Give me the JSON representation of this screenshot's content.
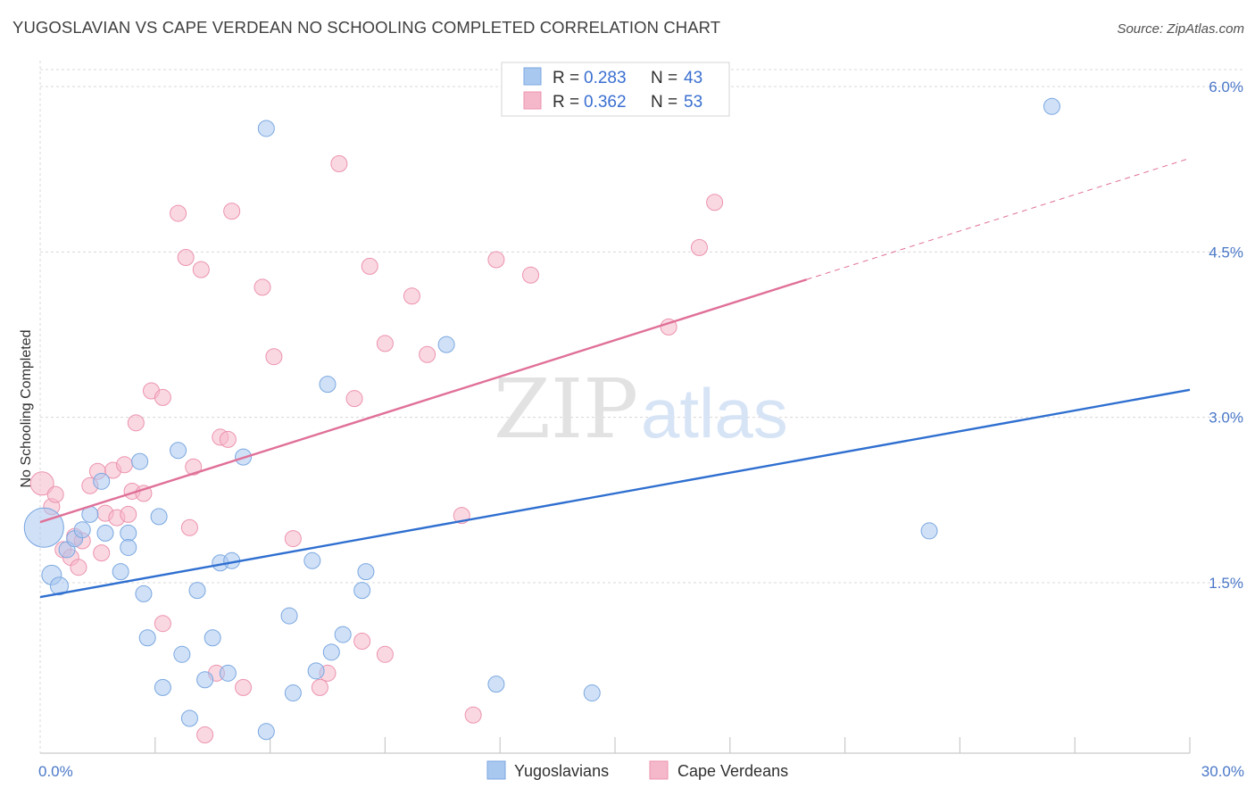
{
  "title": "YUGOSLAVIAN VS CAPE VERDEAN NO SCHOOLING COMPLETED CORRELATION CHART",
  "source": "Source: ZipAtlas.com",
  "watermark": {
    "zip": "ZIP",
    "atlas": "atlas"
  },
  "colors": {
    "blue_fill": "#a9c8f0",
    "blue_stroke": "#7aa7e0",
    "blue_line": "#2f6fd0",
    "pink_fill": "#f5b8ca",
    "pink_stroke": "#ec93ae",
    "pink_line": "#e07098",
    "tick_label": "#4a78c8",
    "grid": "#d8d8d8"
  },
  "legend": {
    "rows": [
      {
        "r_label": "R = ",
        "r_value": "0.283",
        "n_label": "N = ",
        "n_value": "43",
        "series": "blue"
      },
      {
        "r_label": "R = ",
        "r_value": "0.362",
        "n_label": "N = ",
        "n_value": "53",
        "series": "pink"
      }
    ]
  },
  "bottom_legend": [
    {
      "label": "Yugoslavians",
      "series": "blue"
    },
    {
      "label": "Cape Verdeans",
      "series": "pink"
    }
  ],
  "chart_data": {
    "type": "scatter",
    "title": "YUGOSLAVIAN VS CAPE VERDEAN NO SCHOOLING COMPLETED CORRELATION CHART",
    "xlabel": "",
    "ylabel": "No Schooling Completed",
    "xlim": [
      0,
      30
    ],
    "ylim": [
      0,
      6.2
    ],
    "x_tick_labels": [
      {
        "value": 0,
        "label": "0.0%"
      },
      {
        "value": 30,
        "label": "30.0%"
      }
    ],
    "x_minor_ticks": [
      3,
      6,
      9,
      12,
      15,
      18,
      21,
      24,
      27,
      30
    ],
    "y_ticks": [
      {
        "value": 1.5,
        "label": "1.5%"
      },
      {
        "value": 3.0,
        "label": "3.0%"
      },
      {
        "value": 4.5,
        "label": "4.5%"
      },
      {
        "value": 6.0,
        "label": "6.0%"
      }
    ],
    "grid": true,
    "legend_position": "top-center",
    "series": [
      {
        "name": "Yugoslavians",
        "color": "blue",
        "R": 0.283,
        "N": 43,
        "trend": {
          "x0": 0,
          "y0": 1.37,
          "x1": 30,
          "y1": 3.25,
          "dashed_from": null
        },
        "points": [
          [
            0.1,
            2.0,
            22
          ],
          [
            0.3,
            1.57,
            11
          ],
          [
            0.5,
            1.47,
            10
          ],
          [
            0.7,
            1.8,
            9
          ],
          [
            0.9,
            1.9,
            9
          ],
          [
            1.1,
            1.98,
            9
          ],
          [
            1.3,
            2.12,
            9
          ],
          [
            1.6,
            2.42,
            9
          ],
          [
            1.7,
            1.95,
            9
          ],
          [
            2.3,
            1.95,
            9
          ],
          [
            2.3,
            1.82,
            9
          ],
          [
            2.1,
            1.6,
            9
          ],
          [
            2.6,
            2.6,
            9
          ],
          [
            2.7,
            1.4,
            9
          ],
          [
            2.8,
            1.0,
            9
          ],
          [
            3.1,
            2.1,
            9
          ],
          [
            3.2,
            0.55,
            9
          ],
          [
            3.6,
            2.7,
            9
          ],
          [
            3.7,
            0.85,
            9
          ],
          [
            3.9,
            0.27,
            9
          ],
          [
            4.1,
            1.43,
            9
          ],
          [
            4.3,
            0.62,
            9
          ],
          [
            4.5,
            1.0,
            9
          ],
          [
            4.7,
            1.68,
            9
          ],
          [
            4.9,
            0.68,
            9
          ],
          [
            5.0,
            1.7,
            9
          ],
          [
            5.3,
            2.64,
            9
          ],
          [
            5.9,
            5.62,
            9
          ],
          [
            5.9,
            0.15,
            9
          ],
          [
            6.5,
            1.2,
            9
          ],
          [
            6.6,
            0.5,
            9
          ],
          [
            7.1,
            1.7,
            9
          ],
          [
            7.2,
            0.7,
            9
          ],
          [
            7.5,
            3.3,
            9
          ],
          [
            7.6,
            0.87,
            9
          ],
          [
            7.9,
            1.03,
            9
          ],
          [
            8.4,
            1.43,
            9
          ],
          [
            8.5,
            1.6,
            9
          ],
          [
            10.6,
            3.66,
            9
          ],
          [
            11.9,
            0.58,
            9
          ],
          [
            14.4,
            0.5,
            9
          ],
          [
            23.2,
            1.97,
            9
          ],
          [
            26.4,
            5.82,
            9
          ]
        ]
      },
      {
        "name": "Cape Verdeans",
        "color": "pink",
        "R": 0.362,
        "N": 53,
        "trend": {
          "x0": 0,
          "y0": 2.05,
          "x1": 30,
          "y1": 5.35,
          "dashed_from": 20
        },
        "points": [
          [
            0.05,
            2.4,
            13
          ],
          [
            0.3,
            2.19,
            9
          ],
          [
            0.4,
            2.3,
            9
          ],
          [
            0.6,
            1.8,
            9
          ],
          [
            0.8,
            1.73,
            9
          ],
          [
            0.9,
            1.92,
            9
          ],
          [
            1.0,
            1.64,
            9
          ],
          [
            1.1,
            1.88,
            9
          ],
          [
            1.3,
            2.38,
            9
          ],
          [
            1.5,
            2.51,
            9
          ],
          [
            1.6,
            1.77,
            9
          ],
          [
            1.7,
            2.13,
            9
          ],
          [
            1.9,
            2.52,
            9
          ],
          [
            2.0,
            2.09,
            9
          ],
          [
            2.2,
            2.57,
            9
          ],
          [
            2.3,
            2.12,
            9
          ],
          [
            2.4,
            2.33,
            9
          ],
          [
            2.5,
            2.95,
            9
          ],
          [
            2.7,
            2.31,
            9
          ],
          [
            2.9,
            3.24,
            9
          ],
          [
            3.2,
            3.18,
            9
          ],
          [
            3.2,
            1.13,
            9
          ],
          [
            3.6,
            4.85,
            9
          ],
          [
            3.8,
            4.45,
            9
          ],
          [
            3.9,
            2.0,
            9
          ],
          [
            4.0,
            2.55,
            9
          ],
          [
            4.2,
            4.34,
            9
          ],
          [
            4.3,
            0.12,
            9
          ],
          [
            4.6,
            0.68,
            9
          ],
          [
            4.7,
            2.82,
            9
          ],
          [
            4.9,
            2.8,
            9
          ],
          [
            5.0,
            4.87,
            9
          ],
          [
            5.3,
            0.55,
            9
          ],
          [
            5.8,
            4.18,
            9
          ],
          [
            6.1,
            3.55,
            9
          ],
          [
            6.6,
            1.9,
            9
          ],
          [
            7.3,
            0.55,
            9
          ],
          [
            7.5,
            0.68,
            9
          ],
          [
            7.8,
            5.3,
            9
          ],
          [
            8.2,
            3.17,
            9
          ],
          [
            8.4,
            0.97,
            9
          ],
          [
            8.6,
            4.37,
            9
          ],
          [
            9.0,
            3.67,
            9
          ],
          [
            9.0,
            0.85,
            9
          ],
          [
            9.7,
            4.1,
            9
          ],
          [
            10.1,
            3.57,
            9
          ],
          [
            11.0,
            2.11,
            9
          ],
          [
            11.3,
            0.3,
            9
          ],
          [
            11.9,
            4.43,
            9
          ],
          [
            12.8,
            4.29,
            9
          ],
          [
            16.4,
            3.82,
            9
          ],
          [
            17.2,
            4.54,
            9
          ],
          [
            17.6,
            4.95,
            9
          ]
        ]
      }
    ]
  }
}
